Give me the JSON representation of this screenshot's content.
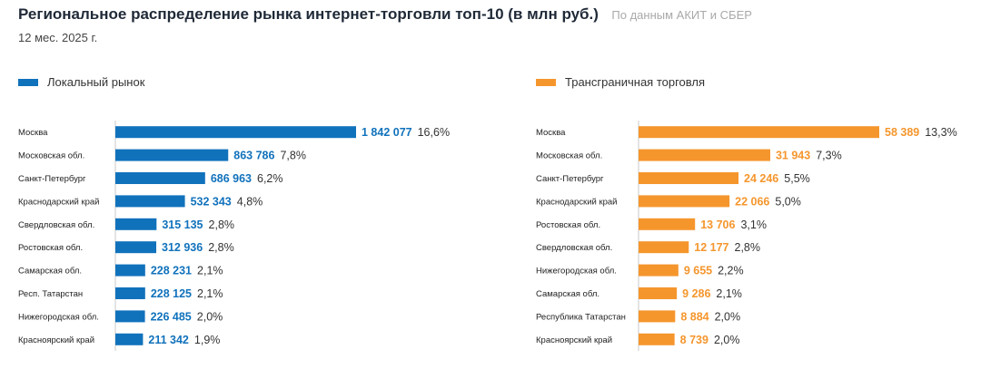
{
  "header": {
    "title": "Региональное распределение рынка интернет-торговли топ-10 (в млн руб.)",
    "source": "По данным АКИТ и СБЕР",
    "subtitle": "12 мес. 2025 г."
  },
  "colors": {
    "local": "#1172bc",
    "cross": "#f5962d"
  },
  "chart_data": [
    {
      "type": "bar",
      "orientation": "horizontal",
      "legend": "Локальный рынок",
      "color": "#1172bc",
      "categories": [
        "Москва",
        "Московская обл.",
        "Санкт-Петербург",
        "Краснодарский край",
        "Свердловская обл.",
        "Ростовская обл.",
        "Самарская обл.",
        "Респ. Татарстан",
        "Нижегородская обл.",
        "Красноярский край"
      ],
      "values": [
        1842077,
        863786,
        686963,
        532343,
        315135,
        312936,
        228231,
        228125,
        226485,
        211342
      ],
      "value_labels": [
        "1 842 077",
        "863 786",
        "686 963",
        "532 343",
        "315 135",
        "312 936",
        "228 231",
        "228 125",
        "226 485",
        "211 342"
      ],
      "shares": [
        "16,6%",
        "7,8%",
        "6,2%",
        "4,8%",
        "2,8%",
        "2,8%",
        "2,1%",
        "2,1%",
        "2,0%",
        "1,9%"
      ]
    },
    {
      "type": "bar",
      "orientation": "horizontal",
      "legend": "Трансграничная торговля",
      "color": "#f5962d",
      "categories": [
        "Москва",
        "Московская обл.",
        "Санкт-Петербург",
        "Краснодарский край",
        "Ростовская обл.",
        "Свердловская обл.",
        "Нижегородская обл.",
        "Самарская обл.",
        "Республика Татарстан",
        "Красноярский край"
      ],
      "values": [
        58389,
        31943,
        24246,
        22066,
        13706,
        12177,
        9655,
        9286,
        8884,
        8739
      ],
      "value_labels": [
        "58 389",
        "31 943",
        "24 246",
        "22 066",
        "13 706",
        "12 177",
        "9 655",
        "9 286",
        "8 884",
        "8 739"
      ],
      "shares": [
        "13,3%",
        "7,3%",
        "5,5%",
        "5,0%",
        "3,1%",
        "2,8%",
        "2,2%",
        "2,1%",
        "2,0%",
        "2,0%"
      ]
    }
  ]
}
